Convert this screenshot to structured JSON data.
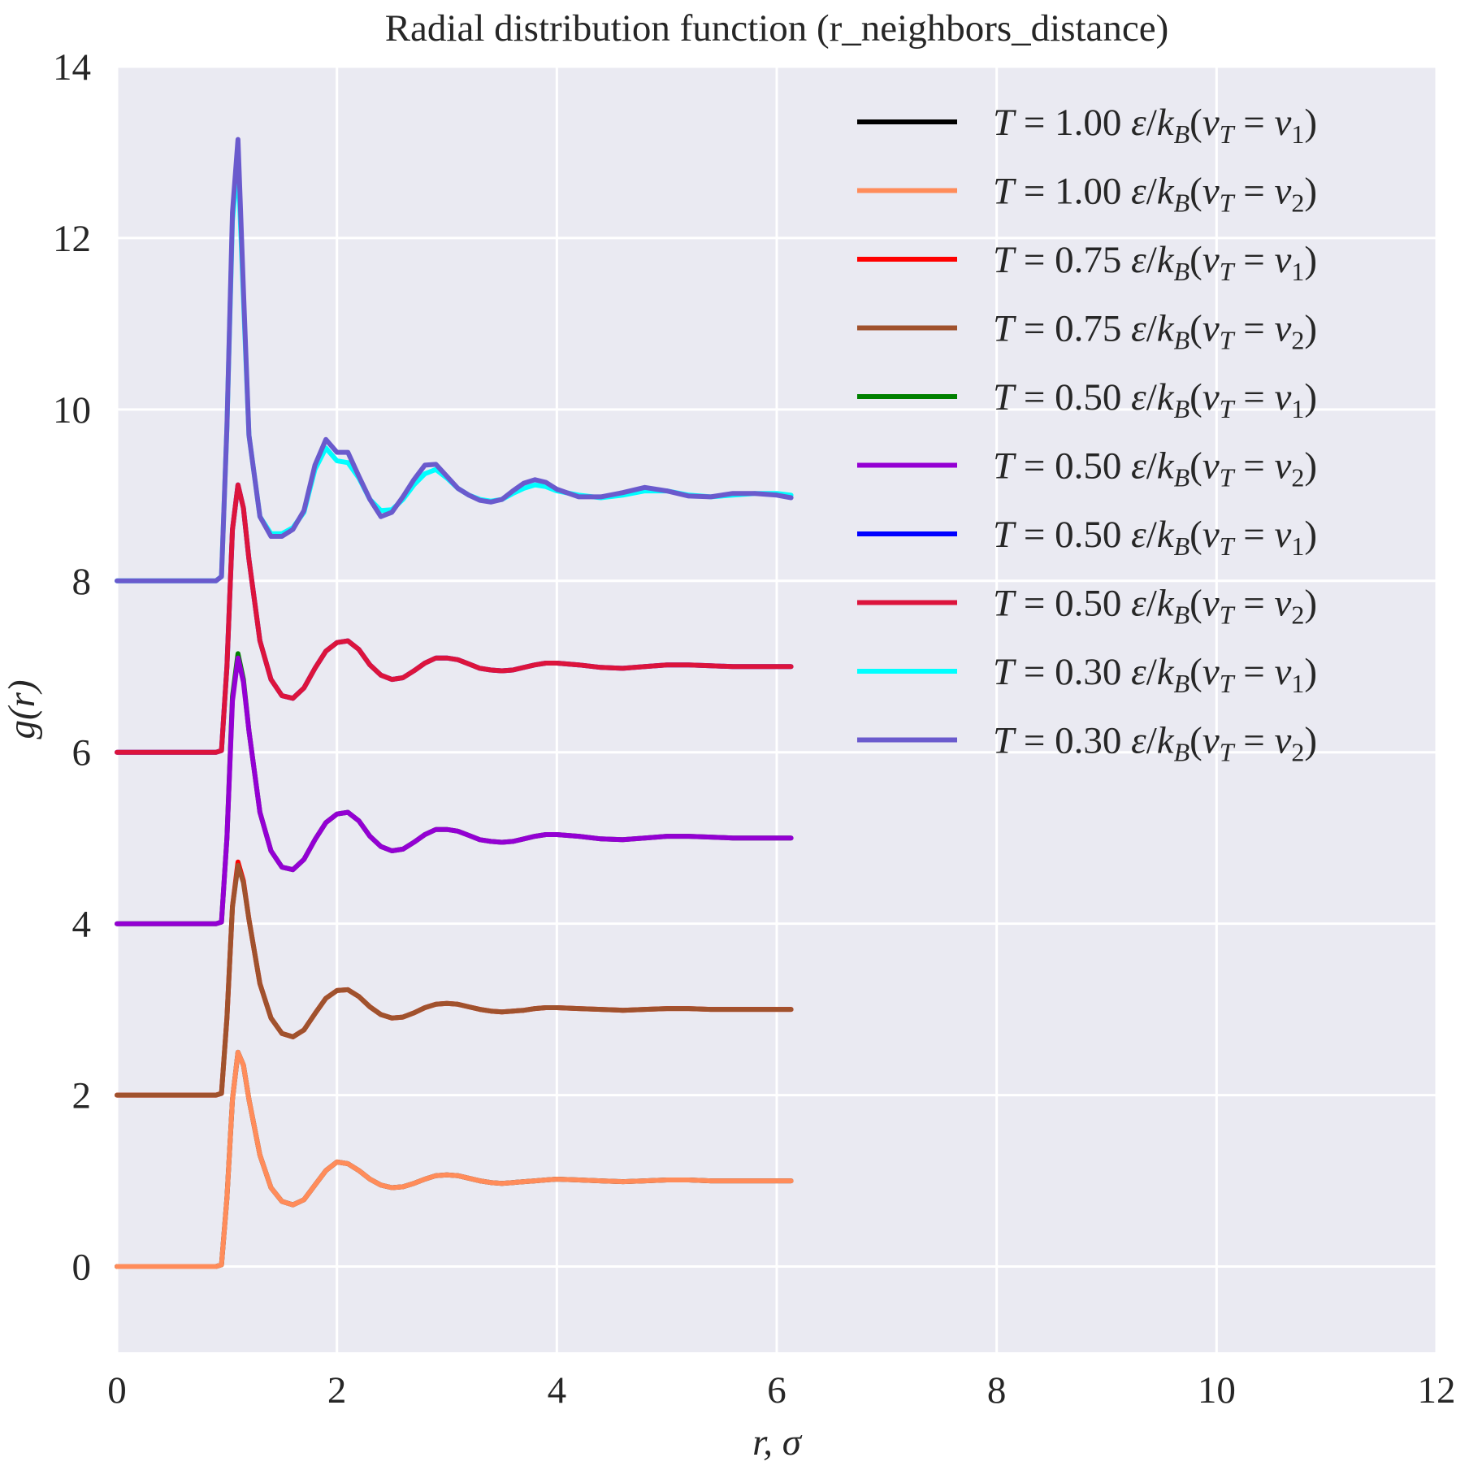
{
  "chart_data": {
    "type": "line",
    "title": "Radial distribution function (r_neighbors_distance)",
    "xlabel": "r, σ",
    "ylabel": "g(r)",
    "xlim": [
      0,
      12
    ],
    "ylim": [
      -1,
      14
    ],
    "xticks": [
      0,
      2,
      4,
      6,
      8,
      10,
      12
    ],
    "yticks": [
      0,
      2,
      4,
      6,
      8,
      10,
      12,
      14
    ],
    "grid": true,
    "background": "#eaeaf2",
    "legend_position": "top-right",
    "x": [
      0.0,
      0.5,
      0.8,
      0.9,
      0.95,
      1.0,
      1.05,
      1.1,
      1.15,
      1.2,
      1.3,
      1.4,
      1.5,
      1.6,
      1.7,
      1.8,
      1.9,
      2.0,
      2.1,
      2.2,
      2.3,
      2.4,
      2.5,
      2.6,
      2.7,
      2.8,
      2.9,
      3.0,
      3.1,
      3.2,
      3.3,
      3.4,
      3.5,
      3.6,
      3.7,
      3.8,
      3.9,
      4.0,
      4.2,
      4.4,
      4.6,
      4.8,
      5.0,
      5.2,
      5.4,
      5.6,
      5.8,
      6.0,
      6.13
    ],
    "series": [
      {
        "name": "T = 1.00 ε/k_B (v_T = v_1)",
        "color": "#000000",
        "offset": 0,
        "values": [
          0,
          0,
          0,
          0,
          0.02,
          0.8,
          1.95,
          2.5,
          2.35,
          1.95,
          1.3,
          0.92,
          0.76,
          0.72,
          0.78,
          0.95,
          1.12,
          1.22,
          1.2,
          1.12,
          1.02,
          0.95,
          0.92,
          0.93,
          0.97,
          1.02,
          1.06,
          1.07,
          1.06,
          1.03,
          1.0,
          0.98,
          0.97,
          0.98,
          0.99,
          1.0,
          1.01,
          1.02,
          1.01,
          1.0,
          0.99,
          1.0,
          1.01,
          1.01,
          1.0,
          1.0,
          1.0,
          1.0,
          1.0
        ]
      },
      {
        "name": "T = 1.00 ε/k_B (v_T = v_2)",
        "color": "#ff8c5a",
        "offset": 0,
        "values": [
          0,
          0,
          0,
          0,
          0.02,
          0.8,
          1.95,
          2.5,
          2.35,
          1.95,
          1.3,
          0.92,
          0.76,
          0.72,
          0.78,
          0.95,
          1.12,
          1.22,
          1.2,
          1.12,
          1.02,
          0.95,
          0.92,
          0.93,
          0.97,
          1.02,
          1.06,
          1.07,
          1.06,
          1.03,
          1.0,
          0.98,
          0.97,
          0.98,
          0.99,
          1.0,
          1.01,
          1.02,
          1.01,
          1.0,
          0.99,
          1.0,
          1.01,
          1.01,
          1.0,
          1.0,
          1.0,
          1.0,
          1.0
        ]
      },
      {
        "name": "T = 0.75 ε/k_B (v_T = v_1)",
        "color": "#ff0000",
        "offset": 2,
        "values": [
          0,
          0,
          0,
          0,
          0.02,
          0.9,
          2.2,
          2.72,
          2.5,
          2.05,
          1.3,
          0.9,
          0.72,
          0.68,
          0.76,
          0.95,
          1.13,
          1.22,
          1.23,
          1.15,
          1.03,
          0.94,
          0.9,
          0.91,
          0.96,
          1.02,
          1.06,
          1.07,
          1.06,
          1.03,
          1.0,
          0.98,
          0.97,
          0.98,
          0.99,
          1.01,
          1.02,
          1.02,
          1.01,
          1.0,
          0.99,
          1.0,
          1.01,
          1.01,
          1.0,
          1.0,
          1.0,
          1.0,
          1.0
        ]
      },
      {
        "name": "T = 0.75 ε/k_B (v_T = v_2)",
        "color": "#a0522d",
        "offset": 2,
        "values": [
          0,
          0,
          0,
          0,
          0.02,
          0.9,
          2.2,
          2.68,
          2.48,
          2.05,
          1.3,
          0.9,
          0.72,
          0.68,
          0.76,
          0.95,
          1.13,
          1.22,
          1.23,
          1.15,
          1.03,
          0.94,
          0.9,
          0.91,
          0.96,
          1.02,
          1.06,
          1.07,
          1.06,
          1.03,
          1.0,
          0.98,
          0.97,
          0.98,
          0.99,
          1.01,
          1.02,
          1.02,
          1.01,
          1.0,
          0.99,
          1.0,
          1.01,
          1.01,
          1.0,
          1.0,
          1.0,
          1.0,
          1.0
        ]
      },
      {
        "name": "T = 0.50 ε/k_B (v_T = v_1)",
        "color": "#008000",
        "offset": 4,
        "values": [
          0,
          0,
          0,
          0,
          0.02,
          1.0,
          2.65,
          3.15,
          2.85,
          2.25,
          1.3,
          0.85,
          0.66,
          0.63,
          0.75,
          0.98,
          1.18,
          1.28,
          1.3,
          1.2,
          1.02,
          0.9,
          0.85,
          0.87,
          0.95,
          1.04,
          1.1,
          1.1,
          1.08,
          1.03,
          0.98,
          0.96,
          0.95,
          0.96,
          0.99,
          1.02,
          1.04,
          1.04,
          1.02,
          0.99,
          0.98,
          1.0,
          1.02,
          1.02,
          1.01,
          1.0,
          1.0,
          1.0,
          1.0
        ]
      },
      {
        "name": "T = 0.50 ε/k_B (v_T = v_2)",
        "color": "#9400d3",
        "offset": 4,
        "values": [
          0,
          0,
          0,
          0,
          0.02,
          1.0,
          2.6,
          3.1,
          2.82,
          2.25,
          1.3,
          0.85,
          0.66,
          0.63,
          0.75,
          0.98,
          1.18,
          1.28,
          1.3,
          1.2,
          1.02,
          0.9,
          0.85,
          0.87,
          0.95,
          1.04,
          1.1,
          1.1,
          1.08,
          1.03,
          0.98,
          0.96,
          0.95,
          0.96,
          0.99,
          1.02,
          1.04,
          1.04,
          1.02,
          0.99,
          0.98,
          1.0,
          1.02,
          1.02,
          1.01,
          1.0,
          1.0,
          1.0,
          1.0
        ]
      },
      {
        "name": "T = 0.50 ε/k_B (v_T = v_1)",
        "color": "#0000ff",
        "offset": 6,
        "values": [
          0,
          0,
          0,
          0,
          0.02,
          1.0,
          2.6,
          3.12,
          2.85,
          2.25,
          1.3,
          0.85,
          0.66,
          0.63,
          0.75,
          0.98,
          1.18,
          1.28,
          1.3,
          1.2,
          1.02,
          0.9,
          0.85,
          0.87,
          0.95,
          1.04,
          1.1,
          1.1,
          1.08,
          1.03,
          0.98,
          0.96,
          0.95,
          0.96,
          0.99,
          1.02,
          1.04,
          1.04,
          1.02,
          0.99,
          0.98,
          1.0,
          1.02,
          1.02,
          1.01,
          1.0,
          1.0,
          1.0,
          1.0
        ]
      },
      {
        "name": "T = 0.50 ε/k_B (v_T = v_2)",
        "color": "#dc143c",
        "offset": 6,
        "values": [
          0,
          0,
          0,
          0,
          0.02,
          1.0,
          2.6,
          3.12,
          2.85,
          2.25,
          1.3,
          0.85,
          0.66,
          0.63,
          0.75,
          0.98,
          1.18,
          1.28,
          1.3,
          1.2,
          1.02,
          0.9,
          0.85,
          0.87,
          0.95,
          1.04,
          1.1,
          1.1,
          1.08,
          1.03,
          0.98,
          0.96,
          0.95,
          0.96,
          0.99,
          1.02,
          1.04,
          1.04,
          1.02,
          0.99,
          0.98,
          1.0,
          1.02,
          1.02,
          1.01,
          1.0,
          1.0,
          1.0,
          1.0
        ]
      },
      {
        "name": "T = 0.30 ε/k_B (v_T = v_1)",
        "color": "#00ffff",
        "offset": 8,
        "values": [
          0,
          0,
          0,
          0,
          0.05,
          1.8,
          4.2,
          4.9,
          3.3,
          1.7,
          0.75,
          0.55,
          0.55,
          0.62,
          0.8,
          1.3,
          1.55,
          1.4,
          1.38,
          1.2,
          0.95,
          0.82,
          0.83,
          0.95,
          1.12,
          1.25,
          1.3,
          1.2,
          1.08,
          1.0,
          0.95,
          0.93,
          0.95,
          1.02,
          1.08,
          1.12,
          1.1,
          1.05,
          1.0,
          0.97,
          1.0,
          1.05,
          1.05,
          1.0,
          0.98,
          1.0,
          1.02,
          1.02,
          1.0
        ]
      },
      {
        "name": "T = 0.30 ε/k_B (v_T = v_2)",
        "color": "#6a5acd",
        "offset": 8,
        "values": [
          0,
          0,
          0,
          0,
          0.05,
          1.8,
          4.3,
          5.15,
          3.4,
          1.7,
          0.75,
          0.52,
          0.52,
          0.6,
          0.82,
          1.35,
          1.65,
          1.5,
          1.5,
          1.22,
          0.95,
          0.75,
          0.8,
          0.98,
          1.18,
          1.35,
          1.36,
          1.22,
          1.08,
          1.0,
          0.94,
          0.92,
          0.95,
          1.05,
          1.14,
          1.18,
          1.15,
          1.07,
          0.98,
          0.98,
          1.03,
          1.09,
          1.05,
          0.99,
          0.98,
          1.02,
          1.02,
          1.0,
          0.97
        ]
      }
    ]
  }
}
